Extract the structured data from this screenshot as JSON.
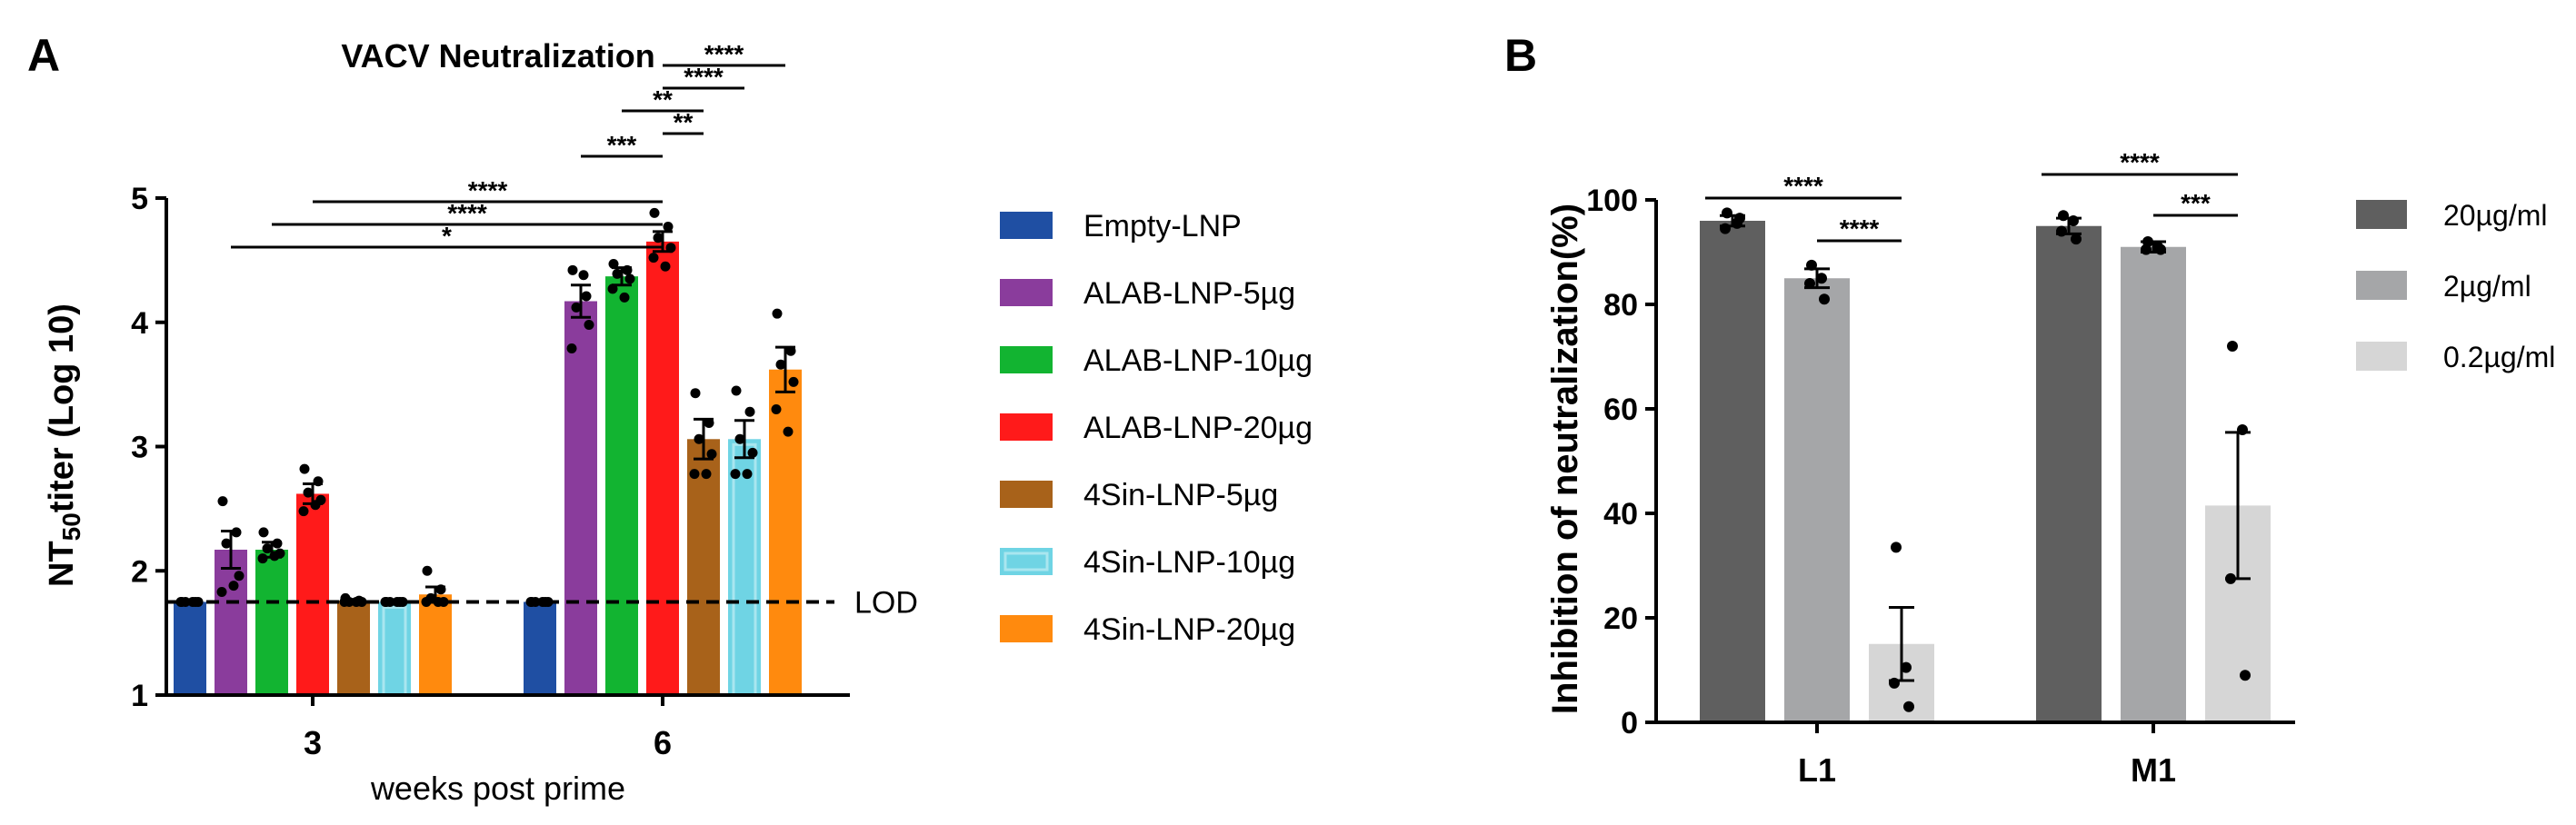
{
  "chart_data": [
    {
      "panel": "A",
      "type": "bar",
      "title": "VACV Neutralization",
      "xlabel": "weeks post prime",
      "ylabel_main": "NT",
      "ylabel_sub": "50",
      "ylabel_rest": "titer (Log 10)",
      "ylim": [
        1,
        5
      ],
      "yticks": [
        1,
        2,
        3,
        4,
        5
      ],
      "categories": [
        "3",
        "6"
      ],
      "lod": {
        "value": 1.75,
        "label": "LOD"
      },
      "series": [
        {
          "name": "Empty-LNP",
          "color": "#1f4fa3",
          "values": [
            1.75,
            1.75
          ],
          "sem": [
            0,
            0
          ],
          "points": [
            [
              1.75,
              1.75,
              1.75,
              1.75,
              1.75,
              1.75
            ],
            [
              1.75,
              1.75,
              1.75,
              1.75,
              1.75,
              1.75
            ]
          ]
        },
        {
          "name": "ALAB-LNP-5µg",
          "color": "#8a3c9c",
          "values": [
            2.17,
            4.17
          ],
          "sem": [
            0.15,
            0.13
          ],
          "points": [
            [
              2.56,
              2.31,
              2.22,
              1.96,
              1.83,
              1.88
            ],
            [
              4.42,
              4.21,
              4.12,
              3.98,
              3.79,
              4.38
            ]
          ]
        },
        {
          "name": "ALAB-LNP-10µg",
          "color": "#12b431",
          "values": [
            2.17,
            4.37
          ],
          "sem": [
            0.06,
            0.07
          ],
          "points": [
            [
              2.31,
              2.22,
              2.18,
              2.14,
              2.1,
              2.12
            ],
            [
              4.47,
              4.42,
              4.39,
              4.35,
              4.27,
              4.2
            ]
          ]
        },
        {
          "name": "ALAB-LNP-20µg",
          "color": "#ff1a1a",
          "values": [
            2.62,
            4.65
          ],
          "sem": [
            0.08,
            0.08
          ],
          "points": [
            [
              2.82,
              2.72,
              2.63,
              2.57,
              2.48,
              2.53
            ],
            [
              4.88,
              4.77,
              4.68,
              4.6,
              4.52,
              4.45
            ]
          ]
        },
        {
          "name": "4Sin-LNP-5µg",
          "color": "#a8621a",
          "values": [
            1.76,
            3.06
          ],
          "sem": [
            0.01,
            0.16
          ],
          "points": [
            [
              1.78,
              1.76,
              1.75,
              1.75,
              1.75,
              1.75
            ],
            [
              3.43,
              3.19,
              3.06,
              2.94,
              2.78,
              2.78
            ]
          ]
        },
        {
          "name": "4Sin-LNP-10µg",
          "color": "#6fd4e4",
          "values": [
            1.75,
            3.06
          ],
          "sem": [
            0,
            0.15
          ],
          "points": [
            [
              1.75,
              1.75,
              1.75,
              1.75,
              1.75,
              1.75
            ],
            [
              3.45,
              3.28,
              3.06,
              2.95,
              2.78,
              2.78
            ]
          ]
        },
        {
          "name": "4Sin-LNP-20µg",
          "color": "#ff8a0e",
          "values": [
            1.81,
            3.62
          ],
          "sem": [
            0.06,
            0.18
          ],
          "points": [
            [
              2.0,
              1.85,
              1.78,
              1.75,
              1.75,
              1.75
            ],
            [
              4.07,
              3.77,
              3.66,
              3.52,
              3.3,
              3.12
            ]
          ]
        }
      ],
      "significance": [
        {
          "from": [
            0,
            1
          ],
          "to": [
            1,
            3
          ],
          "label": "*"
        },
        {
          "from": [
            0,
            2
          ],
          "to": [
            1,
            3
          ],
          "label": "****"
        },
        {
          "from": [
            0,
            3
          ],
          "to": [
            1,
            3
          ],
          "label": "****"
        },
        {
          "from": [
            1,
            1
          ],
          "to": [
            1,
            3
          ],
          "label": "***"
        },
        {
          "from": [
            1,
            4
          ],
          "to": [
            1,
            3
          ],
          "label": "**"
        },
        {
          "from": [
            1,
            2
          ],
          "to": [
            1,
            4
          ],
          "label": "**"
        },
        {
          "from": [
            1,
            3
          ],
          "to": [
            1,
            5
          ],
          "label": "****"
        },
        {
          "from": [
            1,
            3
          ],
          "to": [
            1,
            6
          ],
          "label": "****"
        }
      ]
    },
    {
      "panel": "B",
      "type": "bar",
      "title": "",
      "xlabel": "",
      "ylabel": "Inhibition of neutralization(%)",
      "ylim": [
        0,
        100
      ],
      "yticks": [
        0,
        20,
        40,
        60,
        80,
        100
      ],
      "categories": [
        "L1",
        "M1"
      ],
      "series": [
        {
          "name": "20µg/ml",
          "color": "#5f5f5f",
          "values": [
            96,
            95
          ],
          "sem": [
            1,
            1.5
          ],
          "points": [
            [
              97.5,
              95.5,
              94.5,
              96.5
            ],
            [
              97,
              96,
              94,
              92.5
            ]
          ]
        },
        {
          "name": "2µg/ml",
          "color": "#a5a6a8",
          "values": [
            85,
            91
          ],
          "sem": [
            1.8,
            1
          ],
          "points": [
            [
              87.5,
              85,
              84,
              81
            ],
            [
              92,
              91,
              90.5,
              90.5
            ]
          ]
        },
        {
          "name": "0.2µg/ml",
          "color": "#d6d6d6",
          "values": [
            15,
            41.5
          ],
          "sem": [
            7,
            14
          ],
          "points": [
            [
              33.5,
              10.5,
              7.5,
              3
            ],
            [
              72,
              56,
              27.5,
              9
            ]
          ]
        }
      ],
      "significance": [
        {
          "from": [
            0,
            0
          ],
          "to": [
            0,
            2
          ],
          "label": "****"
        },
        {
          "from": [
            0,
            1
          ],
          "to": [
            0,
            2
          ],
          "label": "****"
        },
        {
          "from": [
            1,
            0
          ],
          "to": [
            1,
            2
          ],
          "label": "****"
        },
        {
          "from": [
            1,
            1
          ],
          "to": [
            1,
            2
          ],
          "label": "***"
        }
      ]
    }
  ],
  "panel_labels": {
    "a": "A",
    "b": "B"
  }
}
